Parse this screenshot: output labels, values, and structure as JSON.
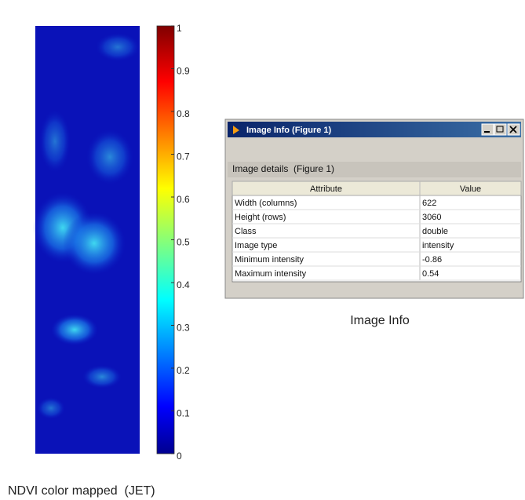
{
  "figure": {
    "colorbar": {
      "clim": [
        0,
        1
      ],
      "ticks": [
        0,
        0.1,
        0.2,
        0.3,
        0.4,
        0.5,
        0.6,
        0.7,
        0.8,
        0.9,
        1
      ],
      "colormap": "jet"
    },
    "caption": "NDVI color mapped  (JET)"
  },
  "window": {
    "title": "Image Info (Figure 1)",
    "section": "Image details  (Figure 1)",
    "table": {
      "header": [
        "Attribute",
        "Value"
      ],
      "rows": [
        [
          "Width (columns)",
          "622"
        ],
        [
          "Height (rows)",
          "3060"
        ],
        [
          "Class",
          "double"
        ],
        [
          "Image type",
          "intensity"
        ],
        [
          "Minimum intensity",
          "-0.86"
        ],
        [
          "Maximum intensity",
          "0.54"
        ]
      ]
    }
  },
  "caption": "Image Info"
}
